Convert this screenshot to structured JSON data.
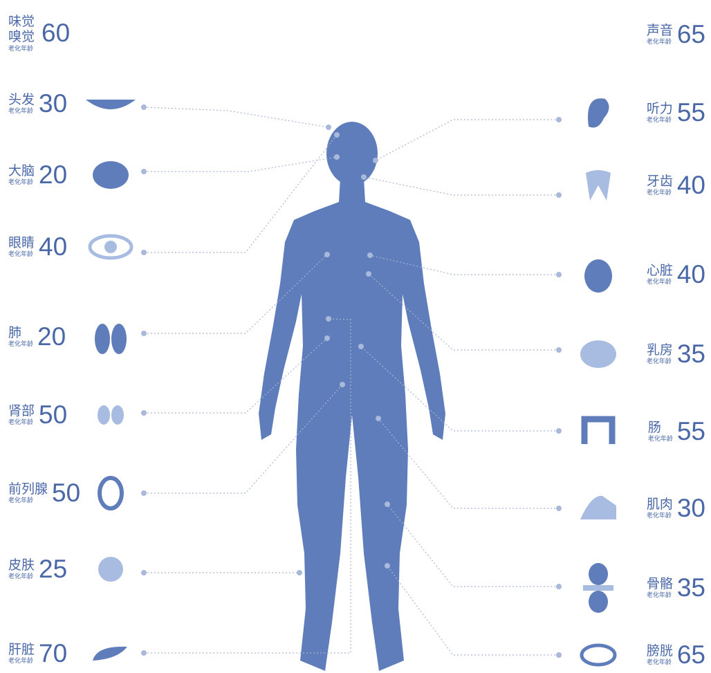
{
  "age_label": "老化年龄",
  "left": [
    {
      "name": "味觉嗅觉",
      "age": 60
    },
    {
      "name": "头发",
      "age": 30
    },
    {
      "name": "大脑",
      "age": 20
    },
    {
      "name": "眼睛",
      "age": 40
    },
    {
      "name": "肺",
      "age": 20
    },
    {
      "name": "肾部",
      "age": 50
    },
    {
      "name": "前列腺",
      "age": 50
    },
    {
      "name": "皮肤",
      "age": 25
    },
    {
      "name": "肝脏",
      "age": 70
    }
  ],
  "right": [
    {
      "name": "声音",
      "age": 65
    },
    {
      "name": "听力",
      "age": 55
    },
    {
      "name": "牙齿",
      "age": 40
    },
    {
      "name": "心脏",
      "age": 40
    },
    {
      "name": "乳房",
      "age": 35
    },
    {
      "name": "肠",
      "age": 55
    },
    {
      "name": "肌肉",
      "age": 30
    },
    {
      "name": "骨骼",
      "age": 35
    },
    {
      "name": "膀胱",
      "age": 65
    }
  ]
}
